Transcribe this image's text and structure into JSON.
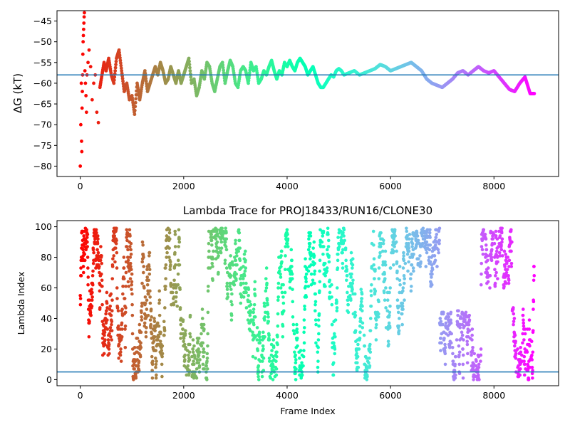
{
  "chart_data": [
    {
      "type": "scatter",
      "title": "",
      "xlabel": "",
      "ylabel": "ΔG (kT)",
      "xlim": [
        -450,
        9250
      ],
      "ylim": [
        -82.5,
        -42.5
      ],
      "xticks": [
        0,
        2000,
        4000,
        6000,
        8000
      ],
      "yticks": [
        -80,
        -75,
        -70,
        -65,
        -60,
        -55,
        -50,
        -45
      ],
      "grid": false,
      "colormap": "rainbow (red = early frames, violet = late frames)",
      "reference_line": {
        "y": -58.0,
        "color": "#1f77b4"
      },
      "series": [
        {
          "points": [
            [
              0,
              -80
            ],
            [
              10,
              -70
            ],
            [
              20,
              -60
            ],
            [
              25,
              -74
            ],
            [
              30,
              -76.5
            ],
            [
              35,
              -66
            ],
            [
              40,
              -62
            ],
            [
              45,
              -58
            ],
            [
              50,
              -53
            ],
            [
              55,
              -50
            ],
            [
              60,
              -48.5
            ],
            [
              65,
              -47
            ],
            [
              70,
              -45.5
            ],
            [
              75,
              -44
            ],
            [
              80,
              -43
            ],
            [
              90,
              -57
            ],
            [
              100,
              -60
            ],
            [
              110,
              -63
            ],
            [
              120,
              -67
            ],
            [
              130,
              -58
            ],
            [
              150,
              -55
            ],
            [
              170,
              -52
            ],
            [
              200,
              -56
            ],
            [
              230,
              -64
            ],
            [
              260,
              -60
            ],
            [
              290,
              -58
            ],
            [
              320,
              -67
            ],
            [
              350,
              -69.5
            ],
            [
              380,
              -61
            ],
            [
              420,
              -58
            ],
            [
              460,
              -55
            ],
            [
              500,
              -57
            ],
            [
              550,
              -54
            ],
            [
              600,
              -58
            ],
            [
              650,
              -60
            ],
            [
              700,
              -54
            ],
            [
              750,
              -52
            ],
            [
              800,
              -57
            ],
            [
              850,
              -62
            ],
            [
              900,
              -60
            ],
            [
              950,
              -64
            ],
            [
              1000,
              -63
            ],
            [
              1050,
              -67.5
            ],
            [
              1100,
              -60
            ],
            [
              1150,
              -64
            ],
            [
              1200,
              -60
            ],
            [
              1250,
              -57
            ],
            [
              1300,
              -62
            ],
            [
              1350,
              -60
            ],
            [
              1400,
              -58
            ],
            [
              1450,
              -56
            ],
            [
              1500,
              -58
            ],
            [
              1550,
              -55
            ],
            [
              1600,
              -57
            ],
            [
              1650,
              -60
            ],
            [
              1700,
              -59
            ],
            [
              1750,
              -56
            ],
            [
              1800,
              -58
            ],
            [
              1850,
              -60
            ],
            [
              1900,
              -57
            ],
            [
              1950,
              -60
            ],
            [
              2000,
              -58
            ],
            [
              2050,
              -56
            ],
            [
              2100,
              -54
            ],
            [
              2150,
              -60
            ],
            [
              2200,
              -59
            ],
            [
              2250,
              -63
            ],
            [
              2300,
              -61
            ],
            [
              2350,
              -57
            ],
            [
              2400,
              -59
            ],
            [
              2450,
              -55
            ],
            [
              2500,
              -56
            ],
            [
              2550,
              -60
            ],
            [
              2600,
              -62
            ],
            [
              2650,
              -59
            ],
            [
              2700,
              -56
            ],
            [
              2750,
              -55
            ],
            [
              2800,
              -60
            ],
            [
              2850,
              -57
            ],
            [
              2900,
              -54.5
            ],
            [
              2950,
              -56
            ],
            [
              3000,
              -60
            ],
            [
              3050,
              -61
            ],
            [
              3100,
              -57
            ],
            [
              3150,
              -56
            ],
            [
              3200,
              -57
            ],
            [
              3250,
              -60
            ],
            [
              3300,
              -55
            ],
            [
              3350,
              -57
            ],
            [
              3400,
              -56
            ],
            [
              3450,
              -60
            ],
            [
              3500,
              -59
            ],
            [
              3550,
              -57
            ],
            [
              3600,
              -58
            ],
            [
              3650,
              -56
            ],
            [
              3700,
              -54.5
            ],
            [
              3750,
              -57
            ],
            [
              3800,
              -59
            ],
            [
              3850,
              -57
            ],
            [
              3900,
              -58
            ],
            [
              3950,
              -55
            ],
            [
              4000,
              -56
            ],
            [
              4050,
              -54.5
            ],
            [
              4100,
              -56
            ],
            [
              4150,
              -57
            ],
            [
              4200,
              -55
            ],
            [
              4250,
              -54
            ],
            [
              4300,
              -55
            ],
            [
              4350,
              -56
            ],
            [
              4400,
              -58
            ],
            [
              4450,
              -57
            ],
            [
              4500,
              -56
            ],
            [
              4550,
              -58
            ],
            [
              4600,
              -60
            ],
            [
              4650,
              -61
            ],
            [
              4700,
              -61
            ],
            [
              4750,
              -60
            ],
            [
              4800,
              -59
            ],
            [
              4850,
              -58
            ],
            [
              4900,
              -58.5
            ],
            [
              4950,
              -57
            ],
            [
              5000,
              -56.5
            ],
            [
              5050,
              -57
            ],
            [
              5100,
              -58
            ],
            [
              5200,
              -57.5
            ],
            [
              5300,
              -57
            ],
            [
              5400,
              -58
            ],
            [
              5500,
              -57.5
            ],
            [
              5600,
              -57
            ],
            [
              5700,
              -56.5
            ],
            [
              5800,
              -55.5
            ],
            [
              5900,
              -56
            ],
            [
              6000,
              -57
            ],
            [
              6100,
              -56.5
            ],
            [
              6200,
              -56
            ],
            [
              6300,
              -55.5
            ],
            [
              6400,
              -55
            ],
            [
              6500,
              -56
            ],
            [
              6600,
              -57
            ],
            [
              6700,
              -59
            ],
            [
              6800,
              -60
            ],
            [
              6900,
              -60.5
            ],
            [
              7000,
              -61
            ],
            [
              7100,
              -60
            ],
            [
              7200,
              -59
            ],
            [
              7300,
              -57.5
            ],
            [
              7400,
              -57
            ],
            [
              7500,
              -58
            ],
            [
              7600,
              -57
            ],
            [
              7700,
              -56
            ],
            [
              7800,
              -57
            ],
            [
              7900,
              -57.5
            ],
            [
              8000,
              -57
            ],
            [
              8100,
              -58.5
            ],
            [
              8200,
              -60
            ],
            [
              8300,
              -61.5
            ],
            [
              8400,
              -62
            ],
            [
              8500,
              -60
            ],
            [
              8600,
              -58.5
            ],
            [
              8700,
              -62.5
            ],
            [
              8780,
              -62.5
            ]
          ]
        }
      ]
    },
    {
      "type": "scatter",
      "title": "Lambda Trace for PROJ18433/RUN16/CLONE30",
      "xlabel": "Frame Index",
      "ylabel": "Lambda Index",
      "xlim": [
        -450,
        9250
      ],
      "ylim": [
        -4,
        104
      ],
      "xticks": [
        0,
        2000,
        4000,
        6000,
        8000
      ],
      "yticks": [
        0,
        20,
        40,
        60,
        80,
        100
      ],
      "grid": false,
      "colormap": "rainbow (red = early frames, violet = late frames)",
      "reference_line": {
        "y": 5,
        "color": "#1f77b4"
      },
      "n_frames": 8780,
      "lambda_range": [
        0,
        99
      ],
      "dense_regions": [
        {
          "x": [
            6400,
            6900
          ],
          "lambda": [
            60,
            99
          ]
        },
        {
          "x": [
            6950,
            7650
          ],
          "lambda": [
            0,
            45
          ]
        },
        {
          "x": [
            7750,
            8300
          ],
          "lambda": [
            60,
            99
          ]
        },
        {
          "x": [
            8350,
            8650
          ],
          "lambda": [
            0,
            50
          ]
        }
      ]
    }
  ]
}
